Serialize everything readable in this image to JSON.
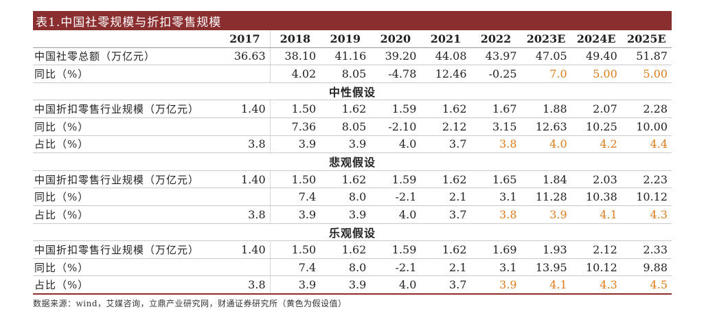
{
  "title": "表1.中国社零规模与折扣零售规模",
  "years": [
    "2017",
    "2018",
    "2019",
    "2020",
    "2021",
    "2022",
    "2023E",
    "2024E",
    "2025E"
  ],
  "retail_total": {
    "label": "中国社零总额（万亿元）",
    "values": [
      "36.63",
      "38.10",
      "41.16",
      "39.20",
      "44.08",
      "43.97",
      "47.05",
      "49.40",
      "51.87"
    ]
  },
  "retail_yoy": {
    "label": "同比（%）",
    "values": [
      "",
      "4.02",
      "8.05",
      "-4.78",
      "12.46",
      "-0.25",
      "7.0",
      "5.00",
      "5.00"
    ]
  },
  "scenarios": [
    {
      "title": "中性假设",
      "rows": [
        {
          "label": "中国折扣零售行业规模（万亿元）",
          "values": [
            "1.40",
            "1.50",
            "1.62",
            "1.59",
            "1.62",
            "1.67",
            "1.88",
            "2.07",
            "2.28"
          ],
          "orange_from": 99
        },
        {
          "label": "同比（%）",
          "values": [
            "",
            "7.36",
            "8.05",
            "-2.10",
            "2.12",
            "3.15",
            "12.63",
            "10.25",
            "10.00"
          ],
          "orange_from": 99
        },
        {
          "label": "占比（%）",
          "values": [
            "3.8",
            "3.9",
            "3.9",
            "4.0",
            "3.7",
            "3.8",
            "4.0",
            "4.2",
            "4.4"
          ],
          "orange_from": 5
        }
      ]
    },
    {
      "title": "悲观假设",
      "rows": [
        {
          "label": "中国折扣零售行业规模（万亿元）",
          "values": [
            "1.40",
            "1.50",
            "1.62",
            "1.59",
            "1.62",
            "1.65",
            "1.84",
            "2.03",
            "2.23"
          ],
          "orange_from": 99
        },
        {
          "label": "同比（%）",
          "values": [
            "",
            "7.4",
            "8.0",
            "-2.1",
            "2.1",
            "3.1",
            "11.28",
            "10.38",
            "10.12"
          ],
          "orange_from": 99
        },
        {
          "label": "占比（%）",
          "values": [
            "3.8",
            "3.9",
            "3.9",
            "4.0",
            "3.7",
            "3.8",
            "3.9",
            "4.1",
            "4.3"
          ],
          "orange_from": 5
        }
      ]
    },
    {
      "title": "乐观假设",
      "rows": [
        {
          "label": "中国折扣零售行业规模（万亿元）",
          "values": [
            "1.40",
            "1.50",
            "1.62",
            "1.59",
            "1.62",
            "1.69",
            "1.93",
            "2.12",
            "2.33"
          ],
          "orange_from": 99
        },
        {
          "label": "同比（%）",
          "values": [
            "",
            "7.4",
            "8.0",
            "-2.1",
            "2.1",
            "3.1",
            "13.95",
            "10.12",
            "9.88"
          ],
          "orange_from": 99
        },
        {
          "label": "占比（%）",
          "values": [
            "3.8",
            "3.9",
            "3.9",
            "4.0",
            "3.7",
            "3.9",
            "4.1",
            "4.3",
            "4.5"
          ],
          "orange_from": 5
        }
      ]
    }
  ],
  "orange_cols_first_block": [
    6,
    7,
    8
  ],
  "source": "数据来源：wind，艾媒咨询，立鼎产业研究网，财通证券研究所（黄色为假设值）",
  "colors": {
    "title_bg": "#8b2e2f",
    "assumption": "#e07b1a"
  }
}
